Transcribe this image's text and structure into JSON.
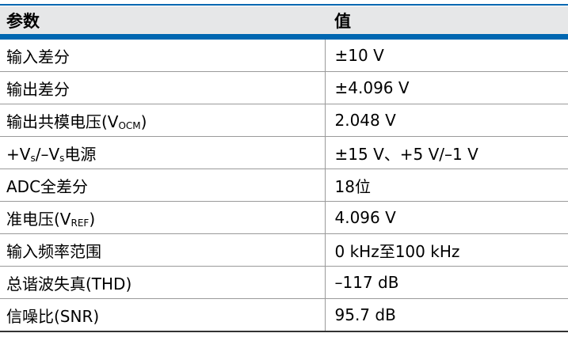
{
  "table": {
    "header": [
      "参数",
      "值"
    ],
    "rows": [
      [
        "输入差分",
        "±10 V"
      ],
      [
        "输出差分",
        "±4.096 V"
      ],
      [
        [
          "输出共模电压(V",
          "OCM",
          ")"
        ],
        "2.048 V"
      ],
      [
        [
          "+V",
          "s",
          "/–V",
          "s",
          "电源"
        ],
        "±15 V、+5 V/–1 V"
      ],
      [
        "ADC全差分",
        "18位"
      ],
      [
        [
          "准电压(V",
          "REF",
          ")"
        ],
        "4.096 V"
      ],
      [
        "输入频率范围",
        "0 kHz至100 kHz"
      ],
      [
        "总谐波失真(THD)",
        "–117 dB"
      ],
      [
        "信噪比(SNR)",
        "95.7 dB"
      ]
    ]
  }
}
